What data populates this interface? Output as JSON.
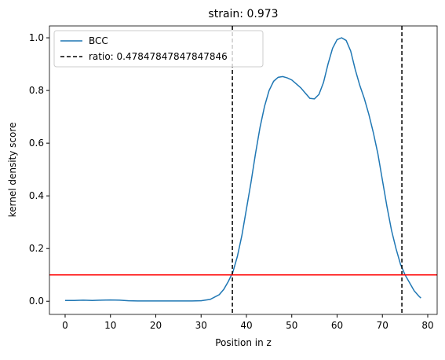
{
  "chart_data": {
    "type": "line",
    "title": "strain: 0.973",
    "xlabel": "Position in z",
    "ylabel": "kernel density score",
    "x": [
      0,
      2,
      4,
      6,
      8,
      10,
      12,
      14,
      16,
      18,
      20,
      22,
      24,
      26,
      28,
      30,
      32,
      34,
      35,
      36,
      37,
      38,
      39,
      40,
      41,
      42,
      43,
      44,
      45,
      46,
      47,
      48,
      49,
      50,
      51,
      52,
      53,
      54,
      55,
      56,
      57,
      58,
      59,
      60,
      61,
      62,
      63,
      64,
      65,
      66,
      67,
      68,
      69,
      70,
      71,
      72,
      73,
      74,
      75,
      76,
      77,
      78,
      78.5
    ],
    "series": [
      {
        "name": "BCC",
        "color": "#1f77b4",
        "values": [
          0.003,
          0.003,
          0.004,
          0.003,
          0.004,
          0.005,
          0.004,
          0.002,
          0.001,
          0.001,
          0.001,
          0.001,
          0.001,
          0.001,
          0.001,
          0.002,
          0.007,
          0.025,
          0.045,
          0.075,
          0.11,
          0.17,
          0.25,
          0.35,
          0.45,
          0.56,
          0.66,
          0.74,
          0.8,
          0.835,
          0.85,
          0.853,
          0.848,
          0.84,
          0.825,
          0.81,
          0.79,
          0.77,
          0.768,
          0.785,
          0.83,
          0.9,
          0.96,
          0.993,
          1.0,
          0.99,
          0.95,
          0.88,
          0.82,
          0.77,
          0.71,
          0.64,
          0.56,
          0.46,
          0.36,
          0.27,
          0.2,
          0.14,
          0.1,
          0.07,
          0.04,
          0.02,
          0.012
        ]
      }
    ],
    "vlines": {
      "name": "ratio: 0.47847847847847846",
      "color": "#000000",
      "values": [
        36.9,
        74.3
      ]
    },
    "hline": {
      "value": 0.1,
      "color": "#ff0000"
    },
    "xlim": [
      -3.46,
      82.08
    ],
    "ylim": [
      -0.05,
      1.045
    ],
    "xticks": [
      0,
      10,
      20,
      30,
      40,
      50,
      60,
      70,
      80
    ],
    "yticks": [
      {
        "value": 0,
        "label": "0.0"
      },
      {
        "value": 0.2,
        "label": "0.2"
      },
      {
        "value": 0.4,
        "label": "0.4"
      },
      {
        "value": 0.6,
        "label": "0.6"
      },
      {
        "value": 0.8,
        "label": "0.8"
      },
      {
        "value": 1.0,
        "label": "1.0"
      }
    ],
    "legend": "upper left"
  }
}
